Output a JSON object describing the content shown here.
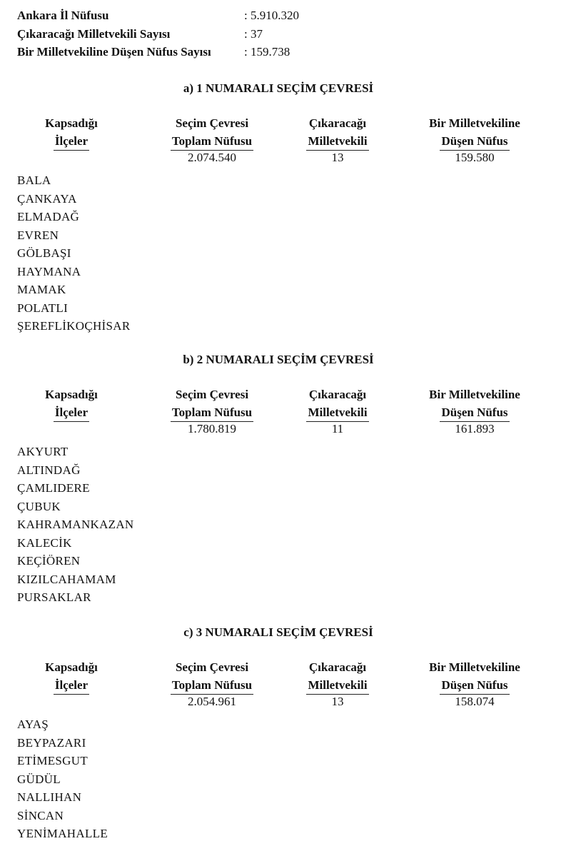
{
  "summary": [
    {
      "label": "Ankara İl Nüfusu",
      "value": ": 5.910.320"
    },
    {
      "label": "Çıkaracağı Milletvekili Sayısı",
      "value": ": 37"
    },
    {
      "label": "Bir Milletvekiline Düşen Nüfus Sayısı",
      "value": ": 159.738"
    }
  ],
  "columns": {
    "c1": [
      "Kapsadığı",
      "İlçeler"
    ],
    "c2": [
      "Seçim Çevresi",
      "Toplam Nüfusu"
    ],
    "c3": [
      "Çıkaracağı",
      "Milletvekili"
    ],
    "c4": [
      "Bir Milletvekiline",
      "Düşen Nüfus"
    ]
  },
  "sections": [
    {
      "title": "a) 1 NUMARALI SEÇİM ÇEVRESİ",
      "population": "2.074.540",
      "deputies": "13",
      "per_deputy": "159.580",
      "districts": [
        "BALA",
        "ÇANKAYA",
        "ELMADAĞ",
        "EVREN",
        "GÖLBAŞI",
        "HAYMANA",
        "MAMAK",
        "POLATLI",
        "ŞEREFLİKOÇHİSAR"
      ]
    },
    {
      "title": "b) 2 NUMARALI SEÇİM ÇEVRESİ",
      "population": "1.780.819",
      "deputies": "11",
      "per_deputy": "161.893",
      "districts": [
        "AKYURT",
        "ALTINDAĞ",
        "ÇAMLIDERE",
        "ÇUBUK",
        "KAHRAMANKAZAN",
        "KALECİK",
        "KEÇİÖREN",
        "KIZILCAHAMAM",
        "PURSAKLAR"
      ]
    },
    {
      "title": "c) 3 NUMARALI SEÇİM ÇEVRESİ",
      "population": "2.054.961",
      "deputies": "13",
      "per_deputy": "158.074",
      "districts": [
        "AYAŞ",
        "BEYPAZARI",
        "ETİMESGUT",
        "GÜDÜL",
        "NALLIHAN",
        "SİNCAN",
        "YENİMAHALLE"
      ]
    }
  ]
}
